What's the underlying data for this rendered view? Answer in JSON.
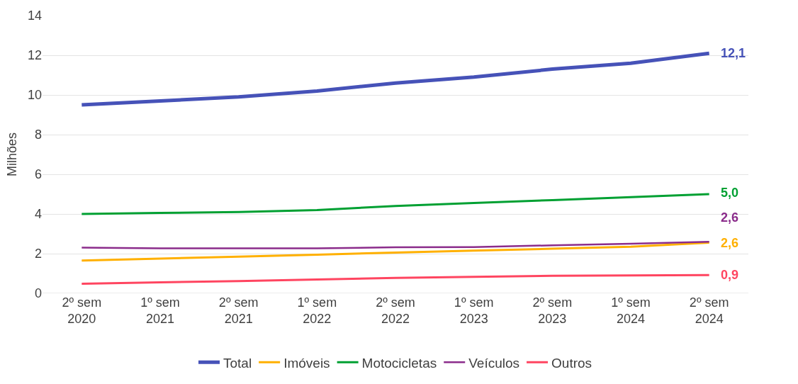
{
  "chart_data": {
    "type": "line",
    "ylabel": "Milhões",
    "categories": [
      "2º sem 2020",
      "1º sem 2021",
      "2º sem 2021",
      "1º sem 2022",
      "2º sem 2022",
      "1º sem 2023",
      "2º sem 2023",
      "1º sem 2024",
      "2º sem 2024"
    ],
    "series": [
      {
        "name": "Total",
        "color": "#4652b8",
        "values": [
          9.5,
          9.7,
          9.9,
          10.2,
          10.6,
          10.9,
          11.3,
          11.6,
          12.1
        ],
        "value_labels": [
          null,
          null,
          null,
          null,
          null,
          null,
          null,
          null,
          "12,1"
        ]
      },
      {
        "name": "Imóveis",
        "color": "#ffb000",
        "values": [
          1.65,
          1.75,
          1.85,
          1.95,
          2.05,
          2.15,
          2.25,
          2.35,
          2.55
        ],
        "value_labels": [
          null,
          null,
          null,
          null,
          null,
          null,
          null,
          null,
          "2,6"
        ]
      },
      {
        "name": "Motocicletas",
        "color": "#00a032",
        "values": [
          4.0,
          4.05,
          4.1,
          4.2,
          4.4,
          4.55,
          4.7,
          4.85,
          5.0
        ],
        "value_labels": [
          null,
          null,
          null,
          null,
          null,
          null,
          null,
          null,
          "5,0"
        ]
      },
      {
        "name": "Veículos",
        "color": "#8b2c8b",
        "values": [
          2.3,
          2.27,
          2.27,
          2.27,
          2.32,
          2.33,
          2.42,
          2.5,
          2.6
        ],
        "value_labels": [
          null,
          null,
          null,
          null,
          null,
          null,
          null,
          null,
          "2,6"
        ]
      },
      {
        "name": "Outros",
        "color": "#ff4560",
        "values": [
          0.48,
          0.55,
          0.62,
          0.7,
          0.78,
          0.83,
          0.88,
          0.9,
          0.92
        ],
        "value_labels": [
          null,
          null,
          null,
          null,
          null,
          null,
          null,
          null,
          "0,9"
        ]
      }
    ],
    "ylim": [
      0,
      14
    ],
    "yticks": [
      0,
      2,
      4,
      6,
      8,
      10,
      12,
      14
    ],
    "grid": "y",
    "legend": "bottom",
    "marker": "none",
    "line_style": "solid"
  }
}
